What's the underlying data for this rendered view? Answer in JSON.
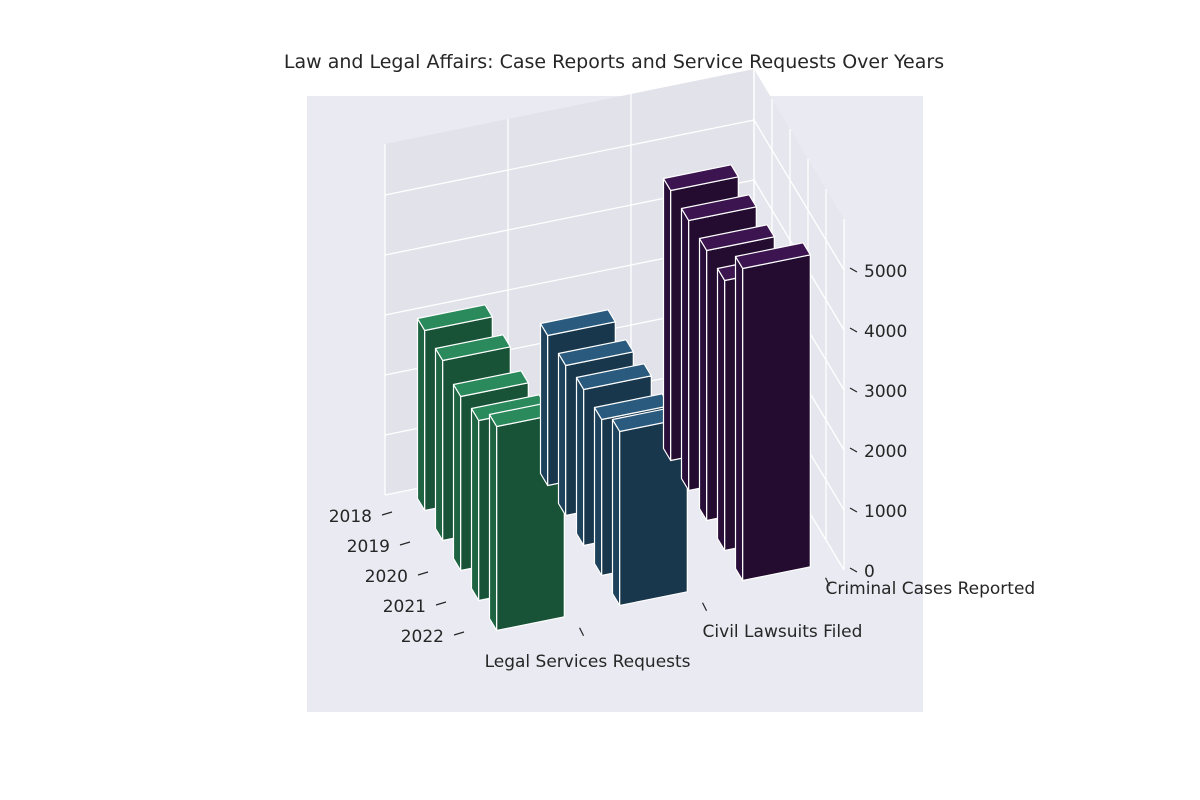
{
  "chart_data": {
    "type": "bar3d",
    "title": "Law and Legal Affairs: Case Reports and Service Requests Over Years",
    "years": [
      "2018",
      "2019",
      "2020",
      "2021",
      "2022"
    ],
    "zticks": [
      "0",
      "1000",
      "2000",
      "3000",
      "4000",
      "5000"
    ],
    "zlim": [
      0,
      5000
    ],
    "series": [
      {
        "name": "Legal Services Requests",
        "values": [
          3000,
          3000,
          2900,
          3000,
          3400
        ]
      },
      {
        "name": "Civil Lawsuits Filed",
        "values": [
          2500,
          2500,
          2600,
          2600,
          2900
        ]
      },
      {
        "name": "Criminal Cases Reported",
        "values": [
          4500,
          4500,
          4500,
          4500,
          5200
        ]
      }
    ],
    "colors": {
      "series": [
        "#2a8a5c",
        "#2a5b7e",
        "#3b1450"
      ],
      "pane": "#eaeaf2",
      "grid": "#ffffff",
      "edge": "#ffffff"
    }
  }
}
